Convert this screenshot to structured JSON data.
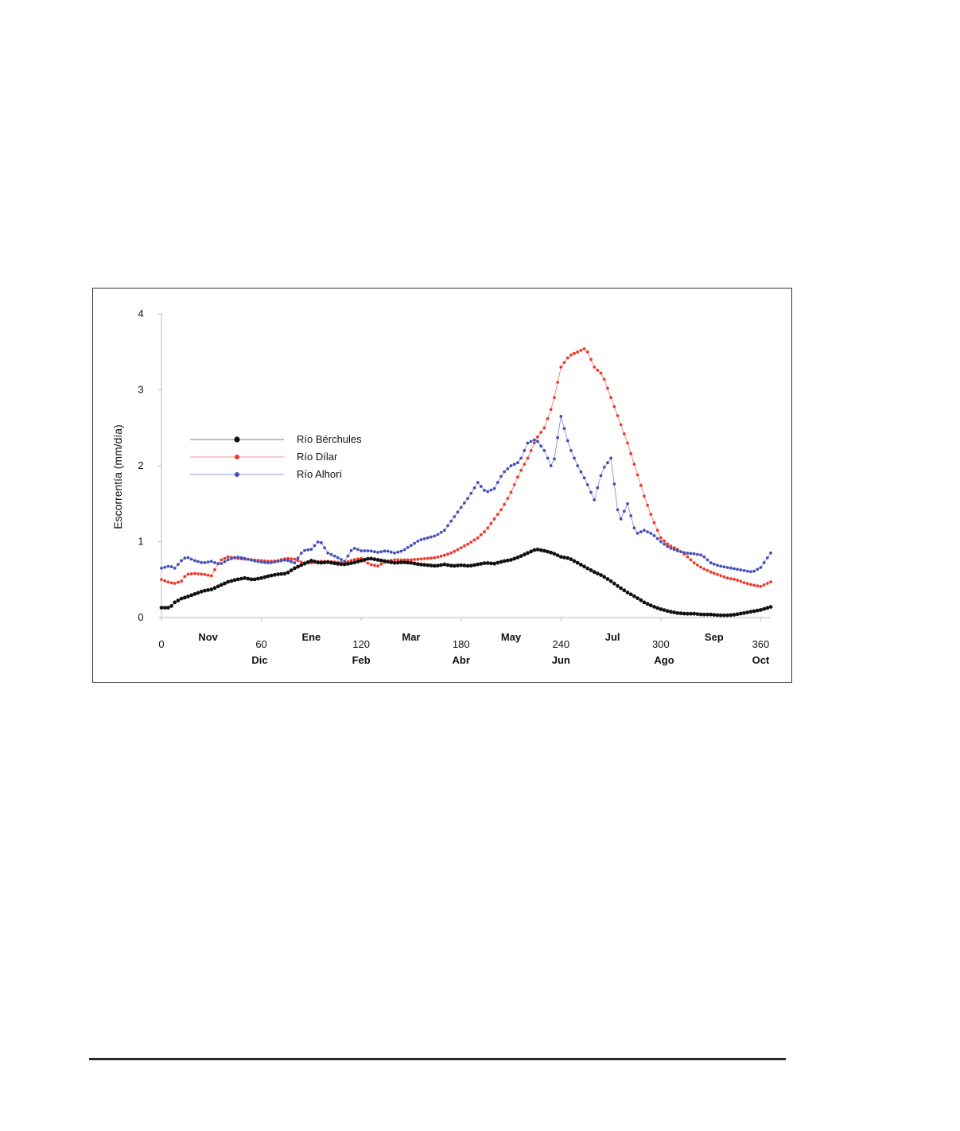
{
  "chart_data": {
    "type": "line",
    "title": "",
    "xlabel": "",
    "ylabel": "Escorrentía (mm/día)",
    "xlim": [
      0,
      366
    ],
    "ylim": [
      0,
      4
    ],
    "x_ticks": [
      0,
      60,
      120,
      180,
      240,
      300,
      360
    ],
    "y_ticks": [
      0,
      1,
      2,
      3,
      4
    ],
    "grid": false,
    "legend_position": "left",
    "month_labels": [
      {
        "label": "Nov",
        "day": 28,
        "row": 1
      },
      {
        "label": "Dic",
        "day": 59,
        "row": 2
      },
      {
        "label": "Ene",
        "day": 90,
        "row": 1
      },
      {
        "label": "Feb",
        "day": 120,
        "row": 2
      },
      {
        "label": "Mar",
        "day": 150,
        "row": 1
      },
      {
        "label": "Abr",
        "day": 180,
        "row": 2
      },
      {
        "label": "May",
        "day": 210,
        "row": 1
      },
      {
        "label": "Jun",
        "day": 240,
        "row": 2
      },
      {
        "label": "Jul",
        "day": 271,
        "row": 1
      },
      {
        "label": "Ago",
        "day": 302,
        "row": 2
      },
      {
        "label": "Sep",
        "day": 332,
        "row": 1
      },
      {
        "label": "Oct",
        "day": 360,
        "row": 2
      }
    ],
    "series": [
      {
        "name": "Río Bérchules",
        "color": "#111111",
        "marker_size": 2.4,
        "x": [
          0,
          5,
          8,
          12,
          15,
          20,
          25,
          30,
          35,
          40,
          45,
          50,
          55,
          60,
          65,
          70,
          75,
          80,
          85,
          90,
          95,
          100,
          105,
          110,
          115,
          120,
          125,
          130,
          135,
          140,
          145,
          150,
          155,
          160,
          165,
          170,
          175,
          180,
          185,
          190,
          195,
          200,
          205,
          210,
          215,
          220,
          225,
          230,
          235,
          240,
          245,
          250,
          255,
          260,
          265,
          270,
          275,
          280,
          285,
          290,
          295,
          300,
          305,
          310,
          315,
          320,
          325,
          330,
          335,
          340,
          345,
          350,
          355,
          360,
          366
        ],
        "y": [
          0.13,
          0.13,
          0.2,
          0.25,
          0.27,
          0.31,
          0.35,
          0.37,
          0.42,
          0.47,
          0.5,
          0.52,
          0.5,
          0.52,
          0.55,
          0.57,
          0.58,
          0.65,
          0.7,
          0.75,
          0.72,
          0.73,
          0.71,
          0.7,
          0.72,
          0.75,
          0.78,
          0.76,
          0.74,
          0.72,
          0.73,
          0.72,
          0.7,
          0.69,
          0.68,
          0.7,
          0.68,
          0.69,
          0.68,
          0.7,
          0.72,
          0.71,
          0.74,
          0.76,
          0.8,
          0.85,
          0.9,
          0.88,
          0.85,
          0.8,
          0.78,
          0.72,
          0.66,
          0.6,
          0.55,
          0.48,
          0.4,
          0.33,
          0.27,
          0.2,
          0.15,
          0.11,
          0.08,
          0.06,
          0.05,
          0.05,
          0.04,
          0.04,
          0.03,
          0.03,
          0.04,
          0.06,
          0.08,
          0.1,
          0.14
        ]
      },
      {
        "name": "Río Dílar",
        "color": "#ee3a2c",
        "marker_size": 1.9,
        "x": [
          0,
          5,
          8,
          12,
          15,
          20,
          25,
          30,
          35,
          40,
          45,
          50,
          55,
          60,
          65,
          70,
          75,
          80,
          85,
          90,
          95,
          100,
          105,
          110,
          115,
          120,
          125,
          130,
          135,
          140,
          145,
          150,
          155,
          160,
          165,
          170,
          175,
          180,
          185,
          190,
          195,
          200,
          205,
          210,
          215,
          220,
          225,
          230,
          235,
          240,
          245,
          250,
          255,
          260,
          265,
          270,
          275,
          280,
          285,
          290,
          295,
          300,
          305,
          310,
          315,
          320,
          325,
          330,
          335,
          340,
          345,
          350,
          355,
          360,
          366
        ],
        "y": [
          0.5,
          0.46,
          0.45,
          0.48,
          0.57,
          0.58,
          0.57,
          0.55,
          0.75,
          0.8,
          0.78,
          0.77,
          0.76,
          0.75,
          0.74,
          0.75,
          0.78,
          0.77,
          0.72,
          0.72,
          0.74,
          0.74,
          0.73,
          0.72,
          0.76,
          0.78,
          0.7,
          0.68,
          0.74,
          0.76,
          0.76,
          0.76,
          0.77,
          0.78,
          0.79,
          0.82,
          0.86,
          0.92,
          0.98,
          1.05,
          1.15,
          1.3,
          1.45,
          1.65,
          1.9,
          2.1,
          2.35,
          2.5,
          2.8,
          3.3,
          3.45,
          3.5,
          3.55,
          3.3,
          3.2,
          2.9,
          2.6,
          2.3,
          1.95,
          1.6,
          1.3,
          1.05,
          0.95,
          0.9,
          0.82,
          0.72,
          0.65,
          0.6,
          0.56,
          0.52,
          0.5,
          0.46,
          0.43,
          0.41,
          0.47
        ]
      },
      {
        "name": "Río Alhorí",
        "color": "#4450b8",
        "marker_size": 1.9,
        "x": [
          0,
          5,
          8,
          12,
          15,
          20,
          25,
          30,
          35,
          40,
          45,
          50,
          55,
          60,
          65,
          70,
          75,
          80,
          85,
          90,
          95,
          100,
          105,
          110,
          115,
          120,
          125,
          130,
          135,
          140,
          145,
          150,
          155,
          160,
          165,
          170,
          175,
          180,
          185,
          190,
          195,
          200,
          205,
          210,
          215,
          220,
          225,
          230,
          235,
          240,
          245,
          250,
          255,
          260,
          265,
          270,
          275,
          280,
          285,
          290,
          295,
          300,
          305,
          310,
          315,
          320,
          325,
          330,
          335,
          340,
          345,
          350,
          355,
          360,
          366
        ],
        "y": [
          0.65,
          0.68,
          0.65,
          0.75,
          0.8,
          0.75,
          0.72,
          0.74,
          0.7,
          0.76,
          0.8,
          0.78,
          0.75,
          0.73,
          0.72,
          0.74,
          0.76,
          0.72,
          0.88,
          0.9,
          1.02,
          0.85,
          0.8,
          0.74,
          0.92,
          0.88,
          0.88,
          0.86,
          0.88,
          0.85,
          0.88,
          0.95,
          1.02,
          1.05,
          1.08,
          1.15,
          1.3,
          1.45,
          1.6,
          1.78,
          1.65,
          1.7,
          1.9,
          2.0,
          2.05,
          2.3,
          2.35,
          2.2,
          1.95,
          2.65,
          2.25,
          2.0,
          1.8,
          1.55,
          1.95,
          2.1,
          1.25,
          1.5,
          1.1,
          1.15,
          1.1,
          1.0,
          0.92,
          0.88,
          0.85,
          0.84,
          0.82,
          0.72,
          0.68,
          0.66,
          0.64,
          0.62,
          0.6,
          0.66,
          0.85
        ]
      }
    ]
  }
}
